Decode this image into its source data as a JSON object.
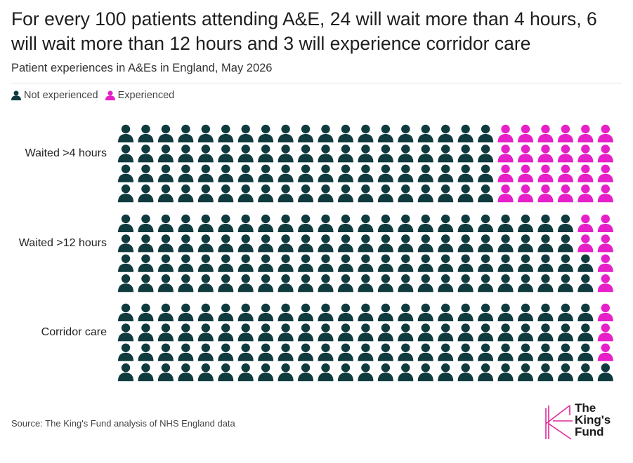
{
  "title": "For every 100 patients attending A&E, 24 will wait more than 4 hours, 6 will wait more than 12 hours and 3 will experience corridor care",
  "subtitle": "Patient experiences in A&Es in England, May 2026",
  "legend": {
    "not_experienced": "Not experienced",
    "experienced": "Experienced"
  },
  "colors": {
    "not_experienced": "#0f3b3f",
    "experienced": "#e61fc9",
    "logo": "#e0289b"
  },
  "source": "Source: The King's Fund analysis of NHS England data",
  "logo": {
    "line1": "The",
    "line2": "King's",
    "line3": "Fund"
  },
  "chart_data": {
    "type": "pictogram",
    "total_per_row": 100,
    "grid": {
      "columns": 25,
      "rows_per_group": 4
    },
    "fill_order": "column-major from right",
    "categories": [
      "Waited >4 hours",
      "Waited >12 hours",
      "Corridor care"
    ],
    "series": [
      {
        "name": "Experienced",
        "values": [
          24,
          6,
          3
        ]
      },
      {
        "name": "Not experienced",
        "values": [
          76,
          94,
          97
        ]
      }
    ]
  }
}
